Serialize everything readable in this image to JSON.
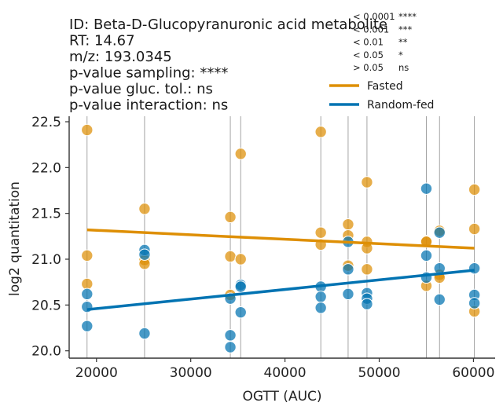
{
  "chart_data": {
    "type": "scatter",
    "title_lines": [
      "ID: Beta-D-Glucopyranuronic acid metabolite",
      "RT: 14.67",
      "m/z: 193.0345",
      "p-value sampling:   ****",
      "p-value gluc. tol.:    ns",
      "p-value interaction: ns"
    ],
    "significance_key": [
      {
        "threshold": "< 0.0001",
        "stars": "****"
      },
      {
        "threshold": "< 0.001",
        "stars": "***"
      },
      {
        "threshold": "< 0.01",
        "stars": "**"
      },
      {
        "threshold": "< 0.05",
        "stars": "*"
      },
      {
        "threshold": "> 0.05",
        "stars": "ns"
      }
    ],
    "xlabel": "OGTT (AUC)",
    "ylabel": "log2 quantitation",
    "xlim": [
      17100,
      62300
    ],
    "ylim": [
      19.92,
      22.56
    ],
    "xticks": [
      20000,
      30000,
      40000,
      50000,
      60000
    ],
    "xtick_labels": [
      "20000",
      "30000",
      "40000",
      "50000",
      "60000"
    ],
    "yticks": [
      20.0,
      20.5,
      21.0,
      21.5,
      22.0,
      22.5
    ],
    "ytick_labels": [
      "20.0",
      "20.5",
      "21.0",
      "21.5",
      "22.0",
      "22.5"
    ],
    "vertical_lines_x": [
      19000,
      25100,
      34200,
      35300,
      43800,
      46700,
      48700,
      55000,
      56400,
      60100
    ],
    "legend": {
      "position": "upper-right"
    },
    "series": [
      {
        "name": "Fasted",
        "color": "#de8f05",
        "fit": [
          [
            19000,
            21.32
          ],
          [
            60100,
            21.12
          ]
        ],
        "points": [
          [
            19000,
            22.41
          ],
          [
            19000,
            21.04
          ],
          [
            19000,
            20.73
          ],
          [
            25100,
            21.55
          ],
          [
            25100,
            20.99
          ],
          [
            25100,
            20.95
          ],
          [
            34200,
            21.46
          ],
          [
            34200,
            21.03
          ],
          [
            34200,
            20.61
          ],
          [
            35300,
            22.15
          ],
          [
            35300,
            21.0
          ],
          [
            43800,
            22.39
          ],
          [
            43800,
            21.29
          ],
          [
            43800,
            21.16
          ],
          [
            46700,
            21.38
          ],
          [
            46700,
            21.26
          ],
          [
            46700,
            20.93
          ],
          [
            48700,
            21.84
          ],
          [
            48700,
            21.19
          ],
          [
            48700,
            21.12
          ],
          [
            48700,
            20.89
          ],
          [
            55000,
            21.2
          ],
          [
            55000,
            21.19
          ],
          [
            55000,
            20.71
          ],
          [
            56400,
            21.31
          ],
          [
            56400,
            20.83
          ],
          [
            56400,
            20.8
          ],
          [
            60100,
            21.76
          ],
          [
            60100,
            21.33
          ],
          [
            60100,
            20.43
          ]
        ]
      },
      {
        "name": "Random-fed",
        "color": "#0173b2",
        "fit": [
          [
            19000,
            20.45
          ],
          [
            60100,
            20.88
          ]
        ],
        "points": [
          [
            19000,
            20.62
          ],
          [
            19000,
            20.48
          ],
          [
            19000,
            20.27
          ],
          [
            25100,
            21.1
          ],
          [
            25100,
            21.05
          ],
          [
            25100,
            20.19
          ],
          [
            34200,
            20.57
          ],
          [
            34200,
            20.17
          ],
          [
            34200,
            20.04
          ],
          [
            35300,
            20.72
          ],
          [
            35300,
            20.7
          ],
          [
            35300,
            20.42
          ],
          [
            43800,
            20.7
          ],
          [
            43800,
            20.59
          ],
          [
            43800,
            20.47
          ],
          [
            46700,
            21.19
          ],
          [
            46700,
            20.89
          ],
          [
            46700,
            20.62
          ],
          [
            48700,
            20.63
          ],
          [
            48700,
            20.57
          ],
          [
            48700,
            20.51
          ],
          [
            55000,
            21.77
          ],
          [
            55000,
            21.04
          ],
          [
            55000,
            20.8
          ],
          [
            56400,
            21.29
          ],
          [
            56400,
            20.9
          ],
          [
            56400,
            20.56
          ],
          [
            60100,
            20.9
          ],
          [
            60100,
            20.61
          ],
          [
            60100,
            20.52
          ]
        ]
      }
    ]
  }
}
